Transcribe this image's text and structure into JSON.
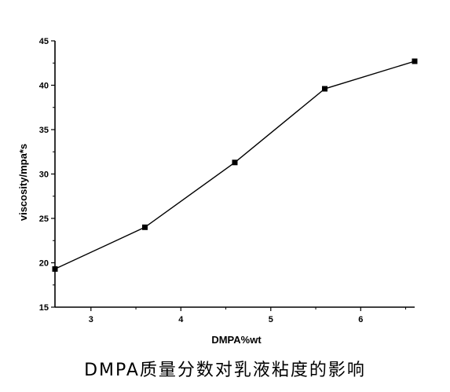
{
  "chart_data": {
    "type": "line",
    "title": "",
    "xlabel": "DMPA%wt",
    "ylabel": "viscosity/mpa*s",
    "xlim": [
      2.6,
      6.6
    ],
    "ylim": [
      15,
      45
    ],
    "x_ticks": [
      3,
      4,
      5,
      6
    ],
    "y_ticks": [
      15,
      20,
      25,
      30,
      35,
      40,
      45
    ],
    "grid": false,
    "legend": "none",
    "series": [
      {
        "x": [
          2.6,
          3.6,
          4.6,
          5.6,
          6.6
        ],
        "y": [
          19.3,
          24.0,
          31.3,
          39.6,
          42.7
        ],
        "marker": "square",
        "color": "#000000"
      }
    ]
  },
  "caption": "DMPA质量分数对乳液粘度的影响"
}
